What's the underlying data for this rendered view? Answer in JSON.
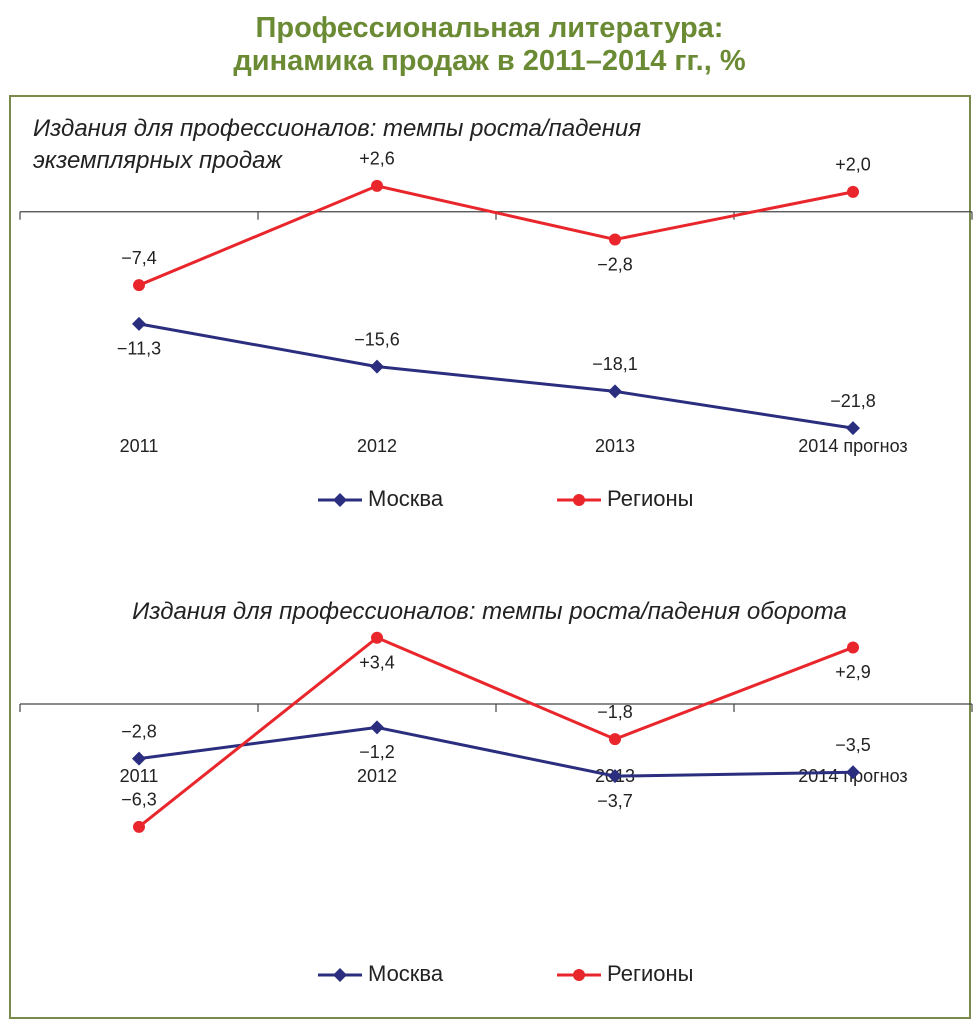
{
  "title": "Профессиональная литература:\nдинамика продаж в 2011–2014 гг., %",
  "chart_data": [
    {
      "type": "line",
      "subtitle": "Издания для профессионалов: темпы роста/падения\nэкземплярных продаж",
      "categories": [
        "2011",
        "2012",
        "2013",
        "2014 прогноз"
      ],
      "ylim": [
        -24,
        4
      ],
      "series": [
        {
          "name": "Москва",
          "color": "#2b2e7e",
          "marker": "diamond",
          "values": [
            -11.3,
            -15.6,
            -18.1,
            -21.8
          ],
          "value_labels": [
            "−11,3",
            "−15,6",
            "−18,1",
            "−21,8"
          ]
        },
        {
          "name": "Регионы",
          "color": "#e8262b",
          "marker": "circle",
          "values": [
            -7.4,
            2.6,
            -2.8,
            2.0
          ],
          "value_labels": [
            "−7,4",
            "+2,6",
            "−2,8",
            "+2,0"
          ]
        }
      ]
    },
    {
      "type": "line",
      "subtitle": "Издания для профессионалов: темпы роста/падения оборота",
      "categories": [
        "2011",
        "2012",
        "2013",
        "2014 прогноз"
      ],
      "ylim": [
        -7,
        4
      ],
      "series": [
        {
          "name": "Москва",
          "color": "#2b2e7e",
          "marker": "diamond",
          "values": [
            -2.8,
            -1.2,
            -3.7,
            -3.5
          ],
          "value_labels": [
            "−2,8",
            "−1,2",
            "−3,7",
            "−3,5"
          ]
        },
        {
          "name": "Регионы",
          "color": "#e8262b",
          "marker": "circle",
          "values": [
            -6.3,
            3.4,
            -1.8,
            2.9
          ],
          "value_labels": [
            "−6,3",
            "+3,4",
            "−1,8",
            "+2,9"
          ]
        }
      ]
    }
  ]
}
